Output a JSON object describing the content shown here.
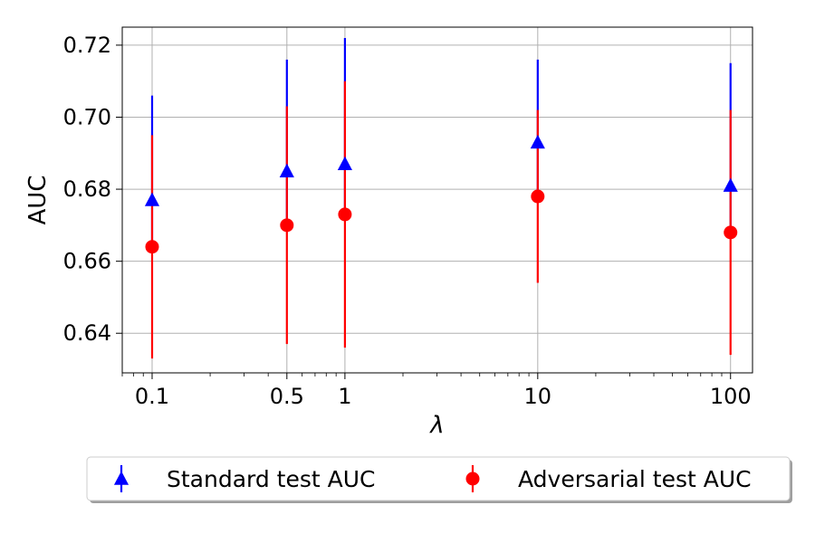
{
  "chart_data": {
    "type": "scatter",
    "xlabel": "λ",
    "ylabel": "AUC",
    "xscale": "log",
    "xlim": [
      0.07,
      130
    ],
    "ylim": [
      0.629,
      0.725
    ],
    "grid": true,
    "x_ticks": [
      0.1,
      0.5,
      1,
      10,
      100
    ],
    "x_tick_labels": [
      "0.1",
      "0.5",
      "1",
      "10",
      "100"
    ],
    "y_ticks": [
      0.64,
      0.66,
      0.68,
      0.7,
      0.72
    ],
    "y_tick_labels": [
      "0.64",
      "0.66",
      "0.68",
      "0.70",
      "0.72"
    ],
    "legend_position": "below-center",
    "series": [
      {
        "name": "Standard test AUC",
        "marker": "triangle",
        "color": "#0000ff",
        "x": [
          0.1,
          0.5,
          1,
          10,
          100
        ],
        "y": [
          0.677,
          0.685,
          0.687,
          0.693,
          0.681
        ],
        "err_low": [
          0.664,
          0.67,
          0.673,
          0.678,
          0.668
        ],
        "err_high": [
          0.706,
          0.716,
          0.722,
          0.716,
          0.715
        ]
      },
      {
        "name": "Adversarial test AUC",
        "marker": "circle",
        "color": "#ff0000",
        "x": [
          0.1,
          0.5,
          1,
          10,
          100
        ],
        "y": [
          0.664,
          0.67,
          0.673,
          0.678,
          0.668
        ],
        "err_low": [
          0.633,
          0.637,
          0.636,
          0.654,
          0.634
        ],
        "err_high": [
          0.695,
          0.703,
          0.71,
          0.702,
          0.702
        ]
      }
    ]
  }
}
